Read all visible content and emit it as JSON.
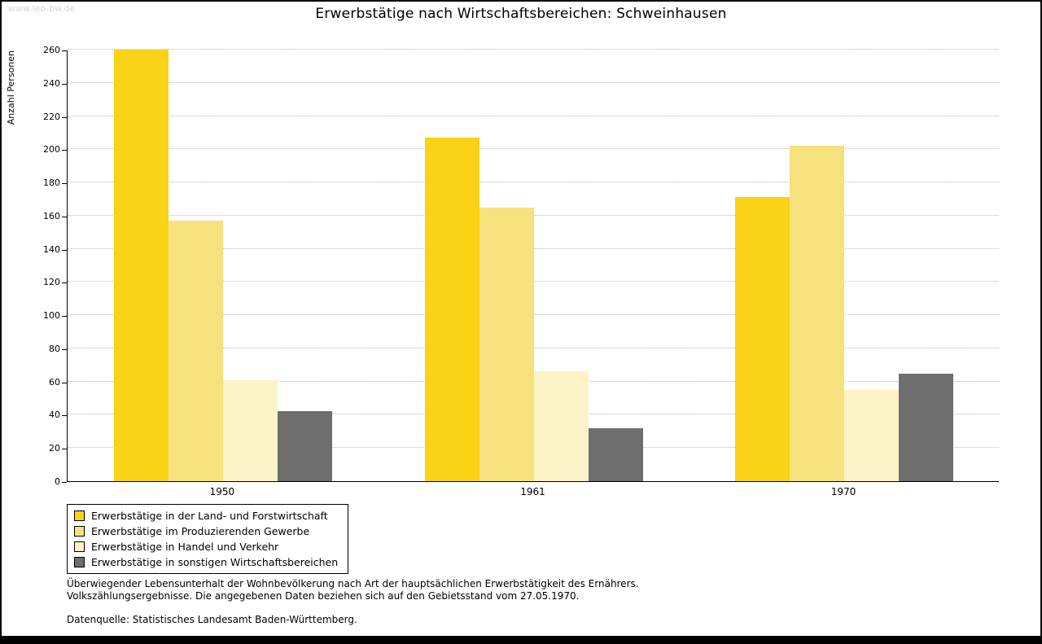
{
  "watermark": "www.leo-bw.de",
  "title": "Erwerbstätige nach Wirtschaftsbereichen: Schweinhausen",
  "chart_data": {
    "type": "bar",
    "title": "Erwerbstätige nach Wirtschaftsbereichen: Schweinhausen",
    "xlabel": "",
    "ylabel": "Anzahl Personen",
    "ylim": [
      0,
      260
    ],
    "ytick_step": 20,
    "grid": true,
    "legend_position": "bottom-left",
    "categories": [
      "1950",
      "1961",
      "1970"
    ],
    "series": [
      {
        "name": "Erwerbstätige in der Land- und Forstwirtschaft",
        "color": "#FAD216",
        "values": [
          260,
          207,
          171
        ]
      },
      {
        "name": "Erwerbstätige im Produzierenden Gewerbe",
        "color": "#F7E17F",
        "values": [
          157,
          165,
          202
        ]
      },
      {
        "name": "Erwerbstätige in Handel und Verkehr",
        "color": "#FCF4C6",
        "values": [
          61,
          66,
          55
        ]
      },
      {
        "name": "Erwerbstätige in sonstigen Wirtschaftsbereichen",
        "color": "#6E6E6E",
        "values": [
          42,
          32,
          65
        ]
      }
    ]
  },
  "footnote": {
    "line1": "Überwiegender Lebensunterhalt der Wohnbevölkerung nach Art der hauptsächlichen Erwerbstätigkeit des Ernährers.",
    "line2": "Volkszählungsergebnisse. Die angegebenen Daten beziehen sich auf den Gebietsstand vom 27.05.1970.",
    "source": "Datenquelle: Statistisches Landesamt Baden-Württemberg."
  }
}
